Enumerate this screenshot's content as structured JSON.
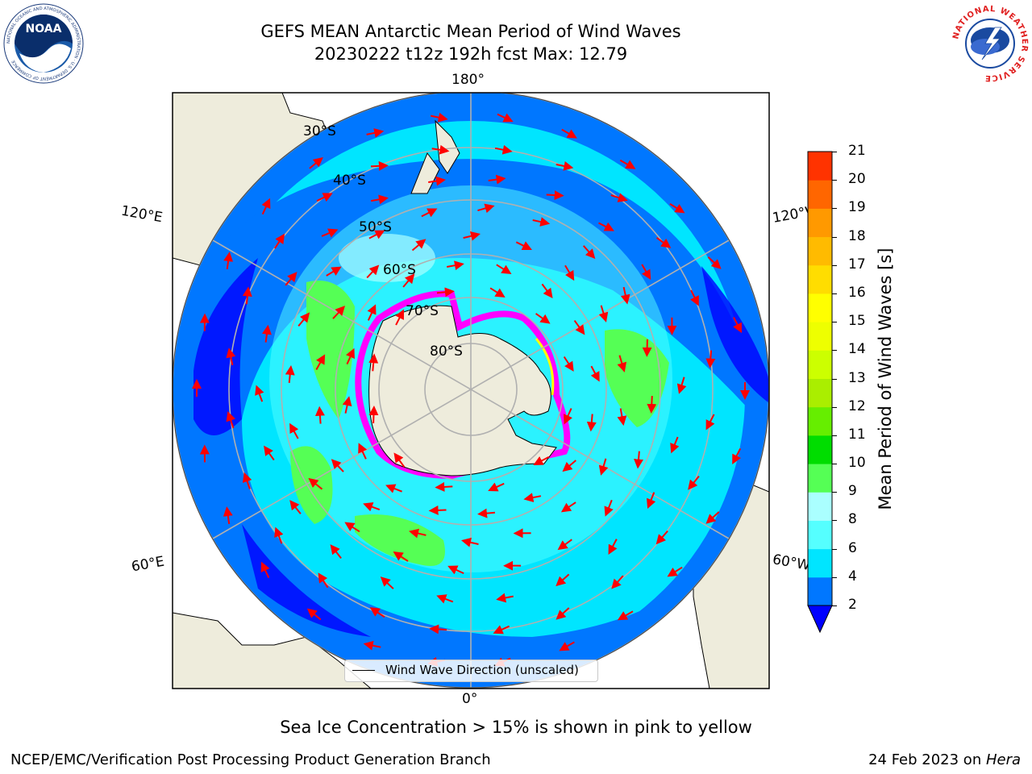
{
  "title": {
    "line1": "GEFS MEAN Antarctic Mean Period of Wind Waves",
    "line2": "20230222 t12z 192h fcst   Max: 12.79"
  },
  "logos": {
    "noaa_text": "NOAA",
    "noaa_ring": "NATIONAL OCEANIC AND ATMOSPHERIC ADMINISTRATION · U.S. DEPARTMENT OF COMMERCE",
    "nws_ring": "NATIONAL WEATHER SERVICE"
  },
  "map": {
    "projection": "south-polar-stereographic",
    "longitude_labels": {
      "top": "180°",
      "bottom": "0°",
      "upper_left": "120°E",
      "upper_right": "120°W",
      "lower_left": "60°E",
      "lower_right": "60°W"
    },
    "latitude_labels": [
      "30°S",
      "40°S",
      "50°S",
      "60°S",
      "70°S",
      "80°S"
    ],
    "land_color": "#eeecdc",
    "ocean_fill_colors": [
      "#0000ff",
      "#0077ff",
      "#00e5ff",
      "#55ffff",
      "#aaffff",
      "#55ff55",
      "#00dd00"
    ],
    "sea_ice_colors": [
      "#ff00ff",
      "#ff55aa",
      "#ffff00"
    ],
    "arrow_color": "#ff0000",
    "legend_label": "Wind Wave Direction (unscaled)"
  },
  "colorbar": {
    "label": "Mean Period of Wind Waves [s]",
    "ticks": [
      "2",
      "4",
      "6",
      "8",
      "9",
      "10",
      "11",
      "12",
      "13",
      "14",
      "15",
      "16",
      "17",
      "18",
      "19",
      "20",
      "21"
    ],
    "colors": [
      "#0077ff",
      "#00e5ff",
      "#55ffff",
      "#aaffff",
      "#55ff55",
      "#00dd00",
      "#66ee00",
      "#aaee00",
      "#ccff00",
      "#eeff00",
      "#ffff00",
      "#ffdd00",
      "#ffbb00",
      "#ff9900",
      "#ff6600",
      "#ff3300",
      "#ff0000"
    ],
    "extend_color": "#0000ff"
  },
  "caption": "Sea Ice Concentration > 15% is shown in pink to yellow",
  "footer": {
    "left": "NCEP/EMC/Verification Post Processing Product Generation Branch",
    "right_prefix": "24 Feb 2023 on ",
    "right_host": "Hera"
  }
}
